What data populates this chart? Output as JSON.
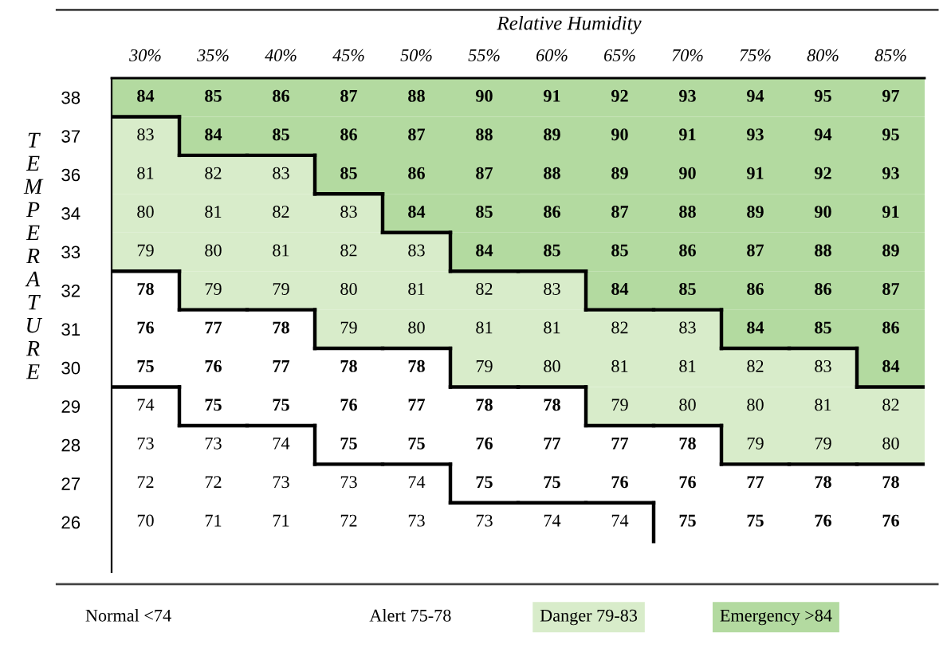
{
  "chart_data": {
    "type": "heatmap",
    "title": "Relative Humidity",
    "ylabel": "TEMPERATURE",
    "categories": [
      "30%",
      "35%",
      "40%",
      "45%",
      "50%",
      "55%",
      "60%",
      "65%",
      "70%",
      "75%",
      "80%",
      "85%"
    ],
    "y_categories": [
      "38",
      "37",
      "36",
      "34",
      "33",
      "32",
      "31",
      "30",
      "29",
      "28",
      "27",
      "26"
    ],
    "cells": [
      [
        84,
        85,
        86,
        87,
        88,
        90,
        91,
        92,
        93,
        94,
        95,
        97
      ],
      [
        83,
        84,
        85,
        86,
        87,
        88,
        89,
        90,
        91,
        93,
        94,
        95
      ],
      [
        81,
        82,
        83,
        85,
        86,
        87,
        88,
        89,
        90,
        91,
        92,
        93
      ],
      [
        80,
        81,
        82,
        83,
        84,
        85,
        86,
        87,
        88,
        89,
        90,
        91
      ],
      [
        79,
        80,
        81,
        82,
        83,
        84,
        85,
        85,
        86,
        87,
        88,
        89
      ],
      [
        78,
        79,
        79,
        80,
        81,
        82,
        83,
        84,
        85,
        86,
        86,
        87
      ],
      [
        76,
        77,
        78,
        79,
        80,
        81,
        81,
        82,
        83,
        84,
        85,
        86
      ],
      [
        75,
        76,
        77,
        78,
        78,
        79,
        80,
        81,
        81,
        82,
        83,
        84
      ],
      [
        74,
        75,
        75,
        76,
        77,
        78,
        78,
        79,
        80,
        80,
        81,
        82
      ],
      [
        73,
        73,
        74,
        75,
        75,
        76,
        77,
        77,
        78,
        79,
        79,
        80
      ],
      [
        72,
        72,
        73,
        73,
        74,
        75,
        75,
        76,
        76,
        77,
        78,
        78
      ],
      [
        70,
        71,
        71,
        72,
        73,
        73,
        74,
        74,
        75,
        75,
        76,
        76
      ]
    ],
    "colors": [
      "#ffffff",
      "#ffffff",
      "#d8ecca",
      "#b3daa0"
    ],
    "data_labels": true,
    "annotations": [
      "Normal <74",
      "Alert 75-78",
      "Danger 79-83",
      "Emergency >84"
    ]
  }
}
